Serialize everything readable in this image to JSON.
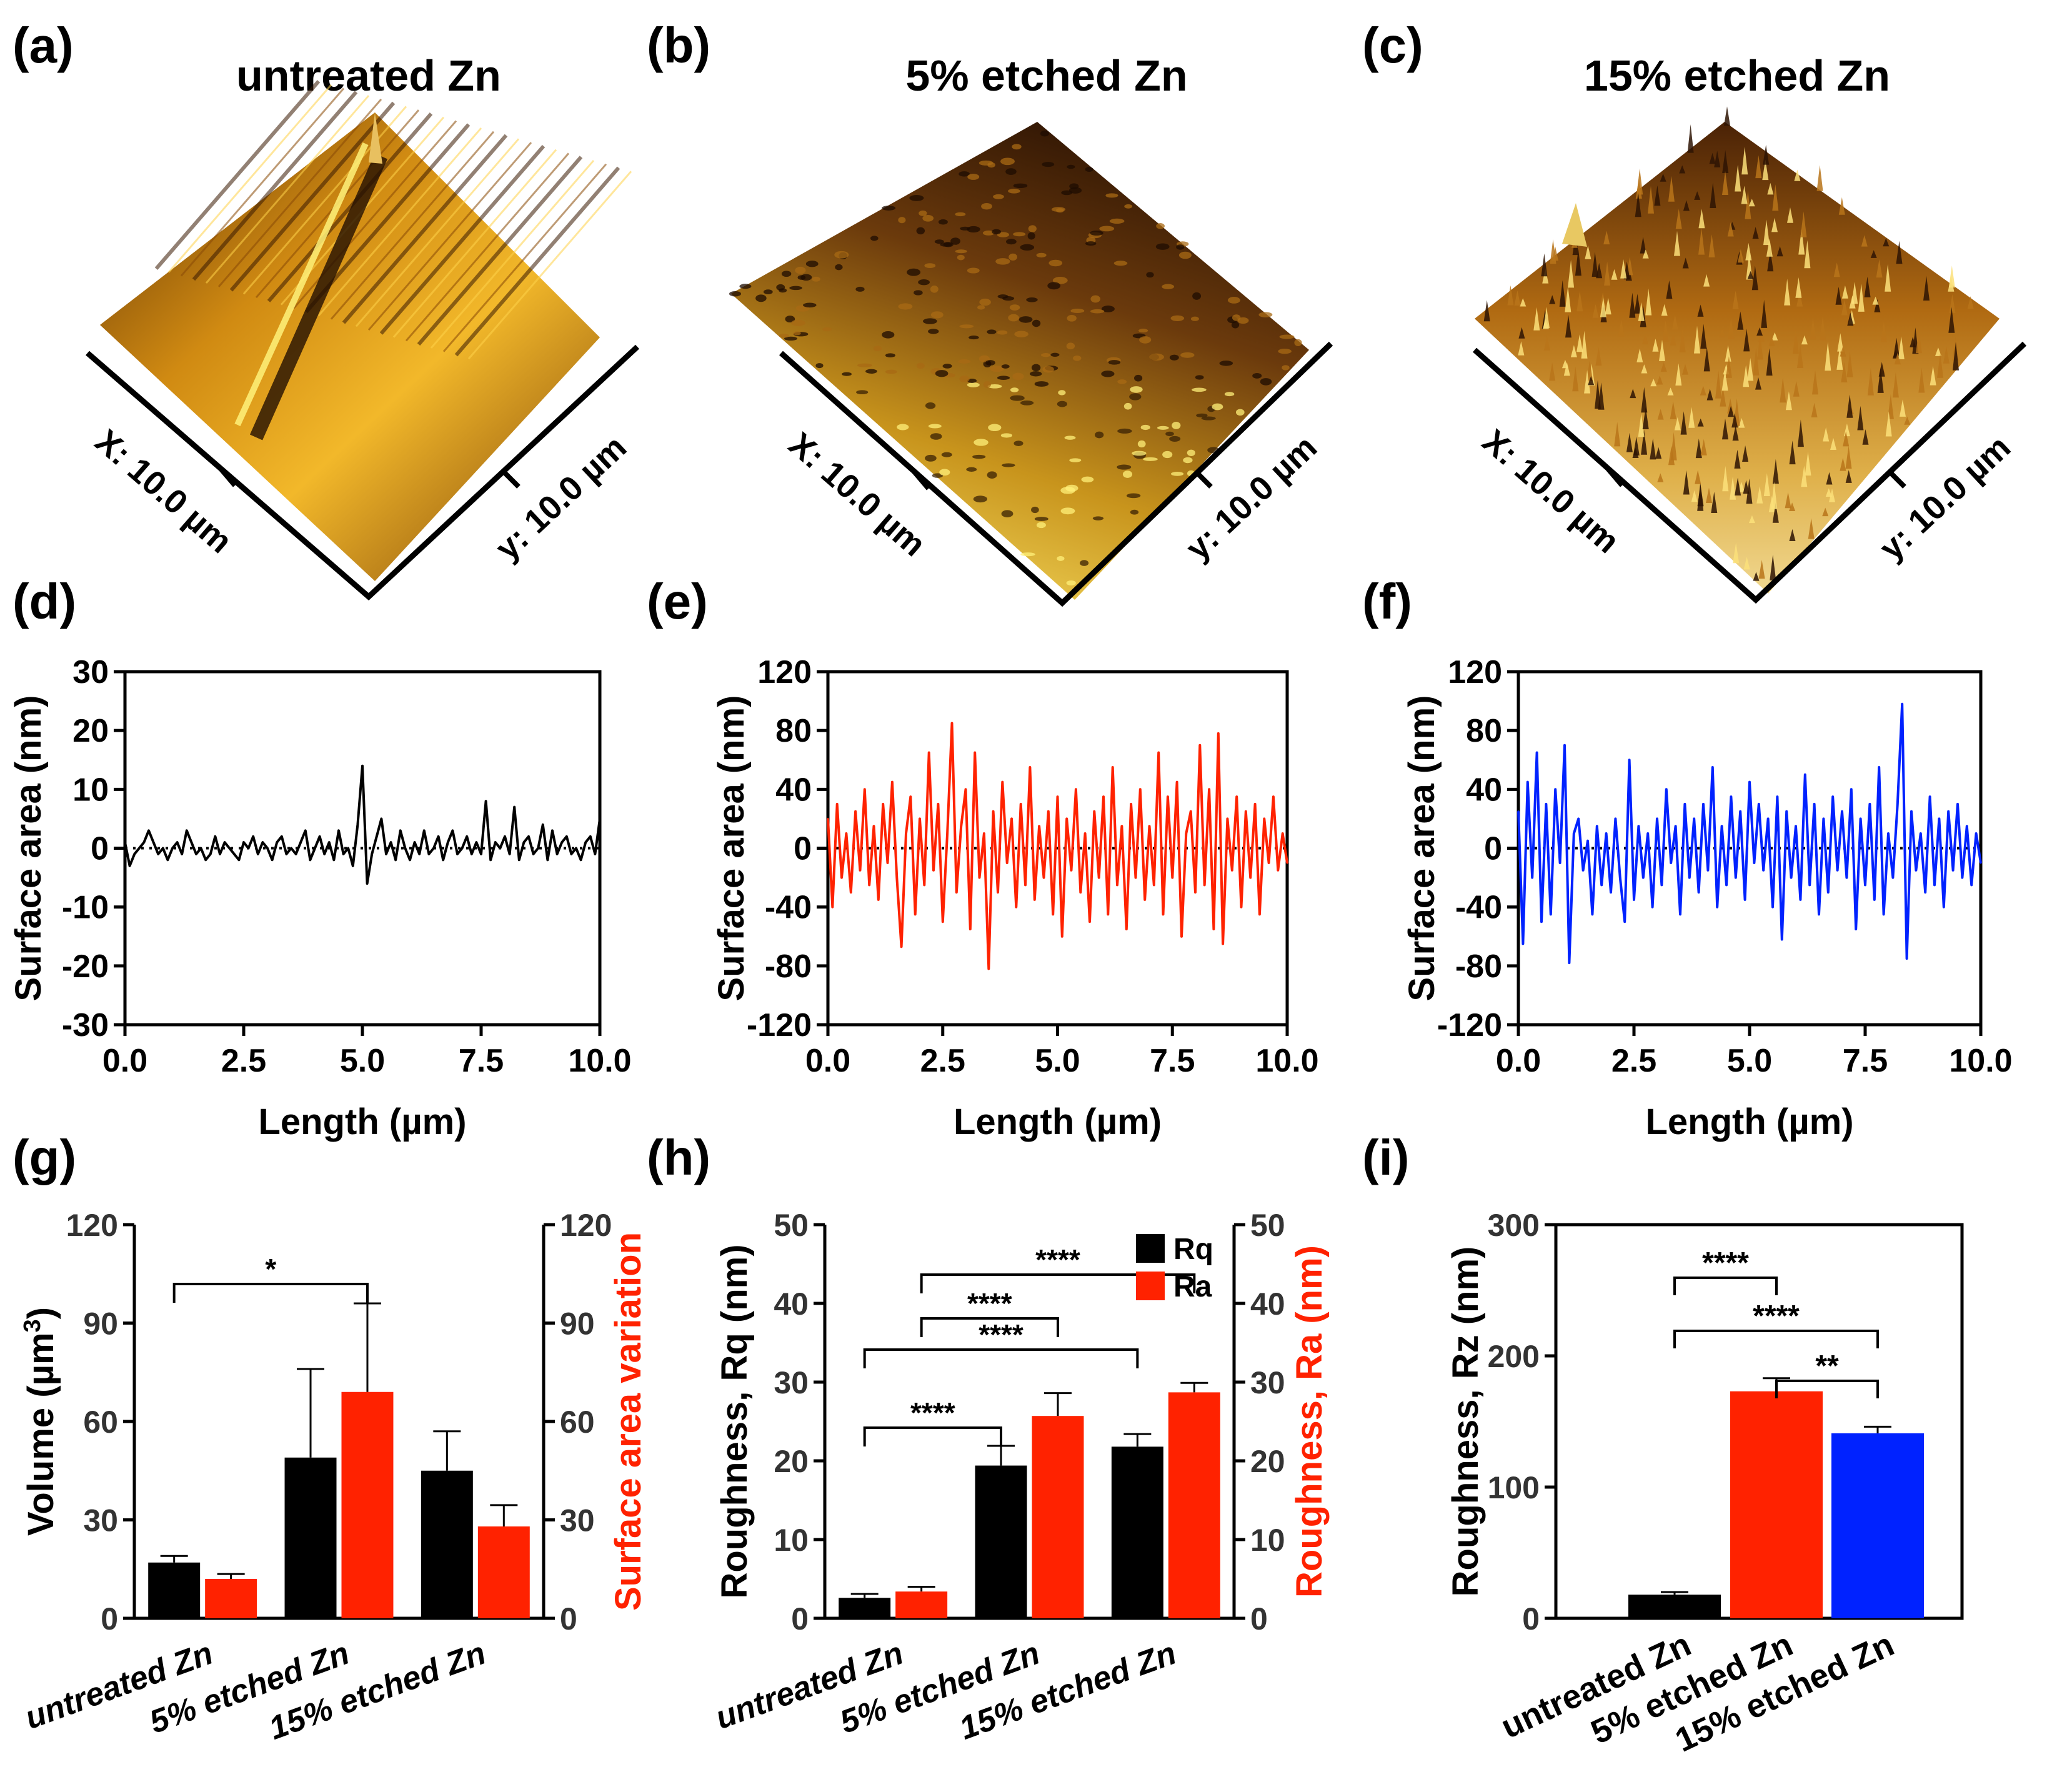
{
  "figure": {
    "panel_labels": [
      "(a)",
      "(b)",
      "(c)",
      "(d)",
      "(e)",
      "(f)",
      "(g)",
      "(h)",
      "(i)"
    ]
  },
  "afm": [
    {
      "title": "untreated Zn",
      "x_label": "X: 10.0 µm",
      "y_label": "y: 10.0 µm",
      "style": "smooth"
    },
    {
      "title": "5% etched Zn",
      "x_label": "X: 10.0 µm",
      "y_label": "y: 10.0 µm",
      "style": "speckled"
    },
    {
      "title": "15% etched Zn",
      "x_label": "X: 10.0 µm",
      "y_label": "y: 10.0 µm",
      "style": "spiky"
    }
  ],
  "colors": {
    "black": "#000000",
    "red": "#ff2200",
    "blue": "#0022ff",
    "ylabel_right": "#ff2200"
  },
  "chart_data": [
    {
      "panel": "d",
      "type": "line",
      "xlabel": "Length (µm)",
      "ylabel": "Surface area (nm)",
      "xlim": [
        0,
        10
      ],
      "ylim": [
        -30,
        30
      ],
      "xticks": [
        "0.0",
        "2.5",
        "5.0",
        "7.5",
        "10.0"
      ],
      "yticks": [
        "-30",
        "-20",
        "-10",
        "0",
        "10",
        "20",
        "30"
      ],
      "color": "#000000",
      "x": [
        0.0,
        0.1,
        0.2,
        0.3,
        0.4,
        0.5,
        0.6,
        0.7,
        0.8,
        0.9,
        1.0,
        1.1,
        1.2,
        1.3,
        1.4,
        1.5,
        1.6,
        1.7,
        1.8,
        1.9,
        2.0,
        2.1,
        2.2,
        2.3,
        2.4,
        2.5,
        2.6,
        2.7,
        2.8,
        2.9,
        3.0,
        3.1,
        3.2,
        3.3,
        3.4,
        3.5,
        3.6,
        3.7,
        3.8,
        3.9,
        4.0,
        4.1,
        4.2,
        4.3,
        4.4,
        4.5,
        4.6,
        4.7,
        4.8,
        4.9,
        5.0,
        5.1,
        5.2,
        5.3,
        5.4,
        5.5,
        5.6,
        5.7,
        5.8,
        5.9,
        6.0,
        6.1,
        6.2,
        6.3,
        6.4,
        6.5,
        6.6,
        6.7,
        6.8,
        6.9,
        7.0,
        7.1,
        7.2,
        7.3,
        7.4,
        7.5,
        7.6,
        7.7,
        7.8,
        7.9,
        8.0,
        8.1,
        8.2,
        8.3,
        8.4,
        8.5,
        8.6,
        8.7,
        8.8,
        8.9,
        9.0,
        9.1,
        9.2,
        9.3,
        9.4,
        9.5,
        9.6,
        9.7,
        9.8,
        9.9,
        10.0
      ],
      "y": [
        1,
        -3,
        -1,
        0,
        1,
        3,
        1,
        -1,
        0,
        -2,
        0,
        1,
        -1,
        3,
        1,
        -1,
        0,
        -2,
        -1,
        2,
        -1,
        1,
        0,
        -1,
        -2,
        1,
        0,
        2,
        -1,
        1,
        0,
        -2,
        1,
        2,
        -1,
        0,
        -1,
        1,
        3,
        -2,
        0,
        2,
        -1,
        1,
        -2,
        3,
        -1,
        0,
        -3,
        4,
        14,
        -6,
        -1,
        2,
        5,
        -1,
        1,
        -2,
        3,
        0,
        -2,
        1,
        -1,
        3,
        -1,
        0,
        2,
        -2,
        1,
        3,
        -1,
        0,
        2,
        -1,
        1,
        -1,
        8,
        -2,
        1,
        0,
        2,
        -1,
        7,
        -2,
        1,
        2,
        -1,
        0,
        4,
        -2,
        3,
        -1,
        1,
        2,
        -1,
        0,
        -2,
        1,
        2,
        -1,
        5
      ]
    },
    {
      "panel": "e",
      "type": "line",
      "xlabel": "Length (µm)",
      "ylabel": "Surface area (nm)",
      "xlim": [
        0,
        10
      ],
      "ylim": [
        -120,
        120
      ],
      "xticks": [
        "0.0",
        "2.5",
        "5.0",
        "7.5",
        "10.0"
      ],
      "yticks": [
        "-120",
        "-80",
        "-40",
        "0",
        "40",
        "80",
        "120"
      ],
      "color": "#ff2200",
      "x": [
        0.0,
        0.1,
        0.2,
        0.3,
        0.4,
        0.5,
        0.6,
        0.7,
        0.8,
        0.9,
        1.0,
        1.1,
        1.2,
        1.3,
        1.4,
        1.5,
        1.6,
        1.7,
        1.8,
        1.9,
        2.0,
        2.1,
        2.2,
        2.3,
        2.4,
        2.5,
        2.6,
        2.7,
        2.8,
        2.9,
        3.0,
        3.1,
        3.2,
        3.3,
        3.4,
        3.5,
        3.6,
        3.7,
        3.8,
        3.9,
        4.0,
        4.1,
        4.2,
        4.3,
        4.4,
        4.5,
        4.6,
        4.7,
        4.8,
        4.9,
        5.0,
        5.1,
        5.2,
        5.3,
        5.4,
        5.5,
        5.6,
        5.7,
        5.8,
        5.9,
        6.0,
        6.1,
        6.2,
        6.3,
        6.4,
        6.5,
        6.6,
        6.7,
        6.8,
        6.9,
        7.0,
        7.1,
        7.2,
        7.3,
        7.4,
        7.5,
        7.6,
        7.7,
        7.8,
        7.9,
        8.0,
        8.1,
        8.2,
        8.3,
        8.4,
        8.5,
        8.6,
        8.7,
        8.8,
        8.9,
        9.0,
        9.1,
        9.2,
        9.3,
        9.4,
        9.5,
        9.6,
        9.7,
        9.8,
        9.9,
        10.0
      ],
      "y": [
        20,
        -40,
        30,
        -20,
        10,
        -30,
        25,
        -15,
        40,
        -25,
        15,
        -35,
        30,
        -10,
        45,
        -20,
        -67,
        10,
        35,
        -45,
        20,
        -25,
        65,
        -15,
        30,
        -50,
        10,
        85,
        -30,
        15,
        40,
        -55,
        65,
        -20,
        10,
        -82,
        25,
        -30,
        45,
        -10,
        20,
        -40,
        30,
        -25,
        55,
        -35,
        15,
        -20,
        25,
        -45,
        35,
        -60,
        20,
        -15,
        40,
        -30,
        10,
        -50,
        25,
        -20,
        35,
        -45,
        55,
        -25,
        15,
        -55,
        30,
        -20,
        40,
        -35,
        15,
        -25,
        65,
        -45,
        35,
        -20,
        45,
        -60,
        10,
        25,
        -30,
        70,
        -25,
        40,
        -55,
        78,
        -65,
        20,
        -15,
        35,
        -40,
        25,
        -20,
        30,
        -45,
        20,
        -10,
        35,
        -15,
        10,
        -10
      ]
    },
    {
      "panel": "f",
      "type": "line",
      "xlabel": "Length (µm)",
      "ylabel": "Surface area (nm)",
      "xlim": [
        0,
        10
      ],
      "ylim": [
        -120,
        120
      ],
      "xticks": [
        "0.0",
        "2.5",
        "5.0",
        "7.5",
        "10.0"
      ],
      "yticks": [
        "-120",
        "-80",
        "-40",
        "0",
        "40",
        "80",
        "120"
      ],
      "color": "#0022ff",
      "x": [
        0.0,
        0.1,
        0.2,
        0.3,
        0.4,
        0.5,
        0.6,
        0.7,
        0.8,
        0.9,
        1.0,
        1.1,
        1.2,
        1.3,
        1.4,
        1.5,
        1.6,
        1.7,
        1.8,
        1.9,
        2.0,
        2.1,
        2.2,
        2.3,
        2.4,
        2.5,
        2.6,
        2.7,
        2.8,
        2.9,
        3.0,
        3.1,
        3.2,
        3.3,
        3.4,
        3.5,
        3.6,
        3.7,
        3.8,
        3.9,
        4.0,
        4.1,
        4.2,
        4.3,
        4.4,
        4.5,
        4.6,
        4.7,
        4.8,
        4.9,
        5.0,
        5.1,
        5.2,
        5.3,
        5.4,
        5.5,
        5.6,
        5.7,
        5.8,
        5.9,
        6.0,
        6.1,
        6.2,
        6.3,
        6.4,
        6.5,
        6.6,
        6.7,
        6.8,
        6.9,
        7.0,
        7.1,
        7.2,
        7.3,
        7.4,
        7.5,
        7.6,
        7.7,
        7.8,
        7.9,
        8.0,
        8.1,
        8.2,
        8.3,
        8.4,
        8.5,
        8.6,
        8.7,
        8.8,
        8.9,
        9.0,
        9.1,
        9.2,
        9.3,
        9.4,
        9.5,
        9.6,
        9.7,
        9.8,
        9.9,
        10.0
      ],
      "y": [
        25,
        -65,
        45,
        -20,
        65,
        -50,
        30,
        -45,
        40,
        -10,
        70,
        -78,
        10,
        20,
        -15,
        5,
        -45,
        15,
        -25,
        10,
        -30,
        20,
        -20,
        -50,
        60,
        -35,
        15,
        -20,
        10,
        -40,
        20,
        -25,
        40,
        -10,
        15,
        -45,
        30,
        -20,
        20,
        -30,
        30,
        -15,
        55,
        -40,
        15,
        -25,
        35,
        -20,
        25,
        -35,
        45,
        -10,
        30,
        -15,
        20,
        -40,
        35,
        -62,
        25,
        -20,
        15,
        -35,
        50,
        -25,
        30,
        -45,
        20,
        -30,
        35,
        -15,
        25,
        -20,
        40,
        -55,
        20,
        -25,
        30,
        -35,
        55,
        -45,
        10,
        -20,
        30,
        98,
        -75,
        25,
        -15,
        10,
        -30,
        35,
        -25,
        20,
        -40,
        25,
        -15,
        30,
        -20,
        15,
        -25,
        10,
        -10
      ]
    },
    {
      "panel": "g",
      "type": "bar",
      "categories": [
        "untreated Zn",
        "5% etched Zn",
        "15% etched Zn"
      ],
      "ylabel": "Volume (µm³)",
      "ylabel_main": "Volume (µm",
      "ylabel_sup": "3",
      "ylabel_tail": ")",
      "ylabel_right": "Surface area variation",
      "ylim": [
        0,
        120
      ],
      "yticks": [
        "0",
        "30",
        "60",
        "90",
        "120"
      ],
      "series": [
        {
          "name": "Volume",
          "color": "#000000",
          "values": [
            17,
            49,
            45
          ],
          "errors": [
            2,
            27,
            12
          ]
        },
        {
          "name": "Surface area variation",
          "color": "#ff2200",
          "values": [
            12,
            69,
            28
          ],
          "errors": [
            1.5,
            27,
            6.5
          ]
        }
      ],
      "significance": [
        {
          "from": 0,
          "to": 1,
          "label": "*"
        }
      ]
    },
    {
      "panel": "h",
      "type": "bar",
      "categories": [
        "untreated Zn",
        "5% etched Zn",
        "15% etched Zn"
      ],
      "ylabel": "Roughness, Rq (nm)",
      "ylabel_right": "Roughness, Ra (nm)",
      "ylim": [
        0,
        50
      ],
      "yticks": [
        "0",
        "10",
        "20",
        "30",
        "40",
        "50"
      ],
      "legend": "top-right",
      "series": [
        {
          "name": "Rq",
          "color": "#000000",
          "values": [
            2.6,
            19.4,
            21.8
          ],
          "errors": [
            0.5,
            2.5,
            1.6
          ]
        },
        {
          "name": "Ra",
          "color": "#ff2200",
          "values": [
            3.4,
            25.7,
            28.7
          ],
          "errors": [
            0.6,
            2.9,
            1.2
          ]
        }
      ],
      "significance": [
        {
          "from": 0,
          "to": 1,
          "label": "****"
        },
        {
          "from": 0,
          "to": 2,
          "label": "****"
        },
        {
          "from": 1,
          "to": 3,
          "label": "****"
        },
        {
          "from": 1,
          "to": 5,
          "label": "****"
        }
      ]
    },
    {
      "panel": "i",
      "type": "bar",
      "categories": [
        "untreated Zn",
        "5% etched Zn",
        "15% etched Zn"
      ],
      "ylabel": "Roughness, Rz (nm)",
      "ylim": [
        0,
        300
      ],
      "yticks": [
        "0",
        "100",
        "200",
        "300"
      ],
      "values": [
        18,
        173,
        141
      ],
      "errors": [
        2,
        10,
        5
      ],
      "colors": [
        "#000000",
        "#ff2200",
        "#0022ff"
      ],
      "significance": [
        {
          "from": 0,
          "to": 1,
          "label": "****"
        },
        {
          "from": 0,
          "to": 2,
          "label": "****"
        },
        {
          "from": 1,
          "to": 2,
          "label": "**"
        }
      ]
    }
  ]
}
